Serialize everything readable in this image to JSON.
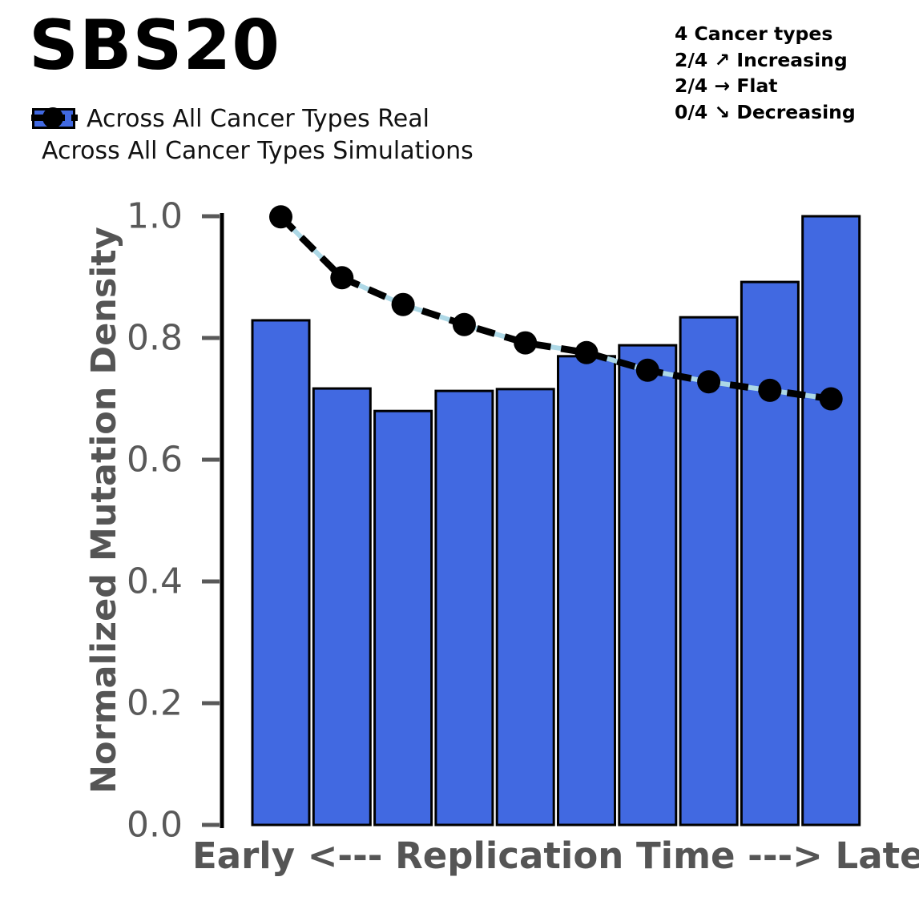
{
  "title": "SBS20",
  "legend": {
    "real_label": "Across All Cancer Types Real",
    "sims_label": "Across All Cancer Types Simulations"
  },
  "stats": {
    "total": "4 Cancer types",
    "increasing": "2/4 ↗ Increasing",
    "flat": "2/4 → Flat",
    "decreasing": "0/4 ↘ Decreasing"
  },
  "chart_data": {
    "type": "bar",
    "title": "SBS20",
    "xlabel": "Early <--- Replication Time ---> Late",
    "ylabel": "Normalized Mutation Density",
    "ylim": [
      0.0,
      1.0
    ],
    "yticks": [
      0.0,
      0.2,
      0.4,
      0.6,
      0.8,
      1.0
    ],
    "n_bins": 10,
    "grid": false,
    "legend_position": "top-left",
    "series": [
      {
        "name": "Across All Cancer Types Real",
        "type": "bar",
        "color": "#4169E1",
        "edge_color": "#000000",
        "values": [
          0.829,
          0.717,
          0.68,
          0.713,
          0.716,
          0.77,
          0.788,
          0.834,
          0.892,
          1.0
        ]
      },
      {
        "name": "Across All Cancer Types Simulations",
        "type": "line-dashed-with-dots",
        "color": "#000000",
        "underlay_color": "#ADD8E6",
        "values": [
          0.999,
          0.899,
          0.855,
          0.822,
          0.792,
          0.776,
          0.747,
          0.728,
          0.714,
          0.7
        ]
      }
    ]
  },
  "colors": {
    "bar_fill": "#4169E1",
    "bar_edge": "#000000",
    "sim_line": "#000000",
    "sim_line_underlay": "#ADD8E6",
    "axis_label": "#555555",
    "tick": "#595959",
    "spine": "#000000",
    "background": "#ffffff"
  }
}
